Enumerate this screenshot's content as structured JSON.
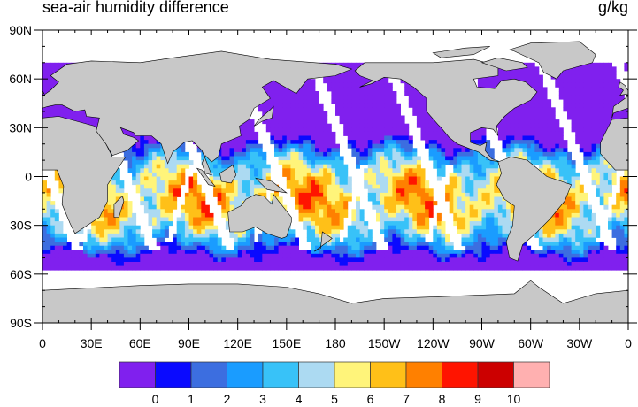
{
  "title": "sea-air humidity difference",
  "units": "g/kg",
  "map": {
    "projection": "cylindrical equidistant",
    "lon_range": [
      0,
      360
    ],
    "lat_range": [
      -90,
      90
    ],
    "land_color": "#c8c8c8",
    "missing_color": "#ffffff",
    "y_tick_labels": [
      "90N",
      "60N",
      "30N",
      "0",
      "30S",
      "60S",
      "90S"
    ],
    "x_tick_labels": [
      "0",
      "30E",
      "60E",
      "90E",
      "120E",
      "150E",
      "180",
      "150W",
      "120W",
      "90W",
      "60W",
      "30W",
      "0"
    ]
  },
  "colorbar": {
    "levels": [
      "0",
      "1",
      "2",
      "3",
      "4",
      "5",
      "6",
      "7",
      "8",
      "9",
      "10"
    ],
    "colors": [
      "#8020ee",
      "#0a0aff",
      "#3c6ee0",
      "#1a9cff",
      "#38c2f8",
      "#acdaf2",
      "#fff47a",
      "#ffc018",
      "#ff8000",
      "#ff1400",
      "#cc0000",
      "#ffb0b0"
    ]
  }
}
